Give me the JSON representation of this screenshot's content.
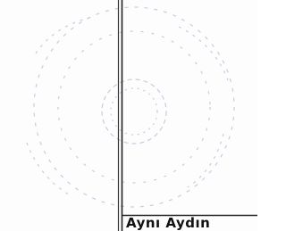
{
  "text": "Aynı Aydın"
}
